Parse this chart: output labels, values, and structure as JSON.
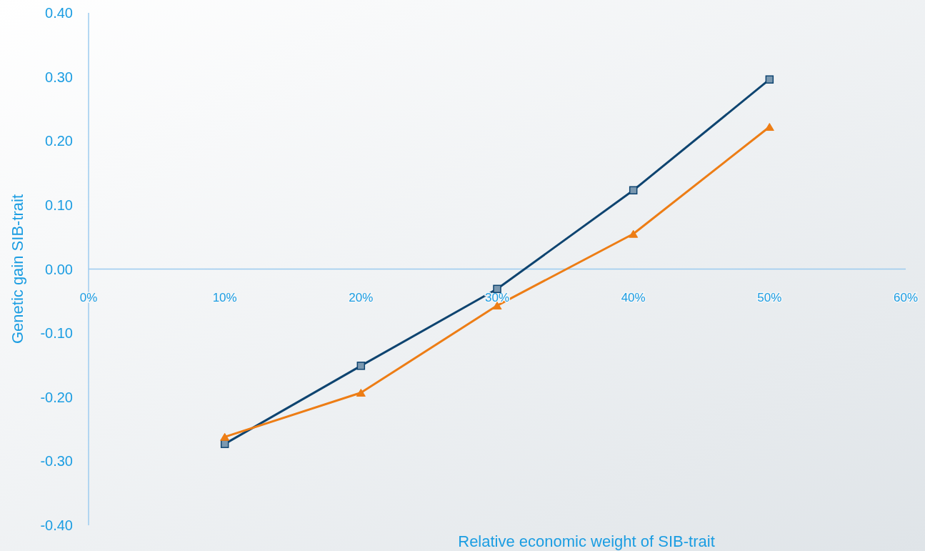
{
  "chart_data": {
    "type": "line",
    "xlabel": "Relative economic weight of SIB-trait",
    "ylabel": "Genetic gain SIB-trait",
    "x": [
      10,
      20,
      30,
      40,
      50
    ],
    "xlim": [
      0,
      60
    ],
    "xticks": [
      {
        "value": 0,
        "label": "0%"
      },
      {
        "value": 10,
        "label": "10%"
      },
      {
        "value": 20,
        "label": "20%"
      },
      {
        "value": 30,
        "label": "30%"
      },
      {
        "value": 40,
        "label": "40%"
      },
      {
        "value": 50,
        "label": "50%"
      },
      {
        "value": 60,
        "label": "60%"
      }
    ],
    "ylim": [
      -0.4,
      0.4
    ],
    "yticks": [
      {
        "value": -0.4,
        "label": "-0.40"
      },
      {
        "value": -0.3,
        "label": "-0.30"
      },
      {
        "value": -0.2,
        "label": "-0.20"
      },
      {
        "value": -0.1,
        "label": "-0.10"
      },
      {
        "value": 0,
        "label": "0.00"
      },
      {
        "value": 0.1,
        "label": "0.10"
      },
      {
        "value": 0.2,
        "label": "0.20"
      },
      {
        "value": 0.3,
        "label": "0.30"
      },
      {
        "value": 0.4,
        "label": "0.40"
      }
    ],
    "grid": false,
    "series": [
      {
        "color": "#0e4470",
        "marker": "square",
        "values": [
          -0.273,
          -0.151,
          -0.031,
          0.123,
          0.296
        ]
      },
      {
        "color": "#ed7d15",
        "marker": "triangle",
        "values": [
          -0.262,
          -0.193,
          -0.057,
          0.055,
          0.222
        ]
      }
    ]
  }
}
